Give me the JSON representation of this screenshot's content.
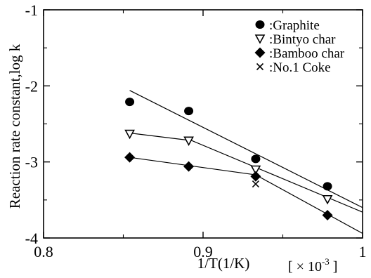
{
  "chart_data": {
    "type": "scatter",
    "title": "",
    "xlabel": "1/T(1/K)",
    "ylabel": "Reaction rate constant,log k",
    "x_multiplier_label": "[ × 10",
    "x_multiplier_exponent": "-3",
    "x_multiplier_close": " ]",
    "xlim": [
      0.8,
      1.0
    ],
    "ylim": [
      -4,
      -1
    ],
    "xticks": [
      0.8,
      0.9,
      1.0
    ],
    "xtick_labels": [
      "0.8",
      "0.9",
      "1"
    ],
    "yticks": [
      -4,
      -3,
      -2,
      -1
    ],
    "ytick_labels": [
      "-4",
      "-3",
      "-2",
      "-1"
    ],
    "grid": false,
    "legend_position": "top-right",
    "series": [
      {
        "name": ":Graphite",
        "marker": "circle",
        "x": [
          0.854,
          0.891,
          0.933,
          0.978
        ],
        "y": [
          -2.21,
          -2.33,
          -2.96,
          -3.32
        ],
        "fit_line": {
          "x": [
            0.854,
            1.0
          ],
          "y": [
            -2.06,
            -3.6
          ]
        }
      },
      {
        "name": ":Bintyo char",
        "marker": "triangle-down-open",
        "x": [
          0.854,
          0.891,
          0.933,
          0.978
        ],
        "y": [
          -2.63,
          -2.72,
          -3.1,
          -3.49
        ],
        "fit_line": {
          "x": [
            0.854,
            0.893,
            1.0
          ],
          "y": [
            -2.62,
            -2.72,
            -3.66
          ]
        }
      },
      {
        "name": ":Bamboo char",
        "marker": "diamond",
        "x": [
          0.854,
          0.891,
          0.933,
          0.978
        ],
        "y": [
          -2.94,
          -3.06,
          -3.19,
          -3.7
        ],
        "fit_line": {
          "x": [
            0.854,
            0.933,
            1.0
          ],
          "y": [
            -2.94,
            -3.17,
            -3.94
          ]
        }
      },
      {
        "name": ":No.1 Coke",
        "marker": "x",
        "x": [
          0.933
        ],
        "y": [
          -3.29
        ]
      }
    ]
  }
}
